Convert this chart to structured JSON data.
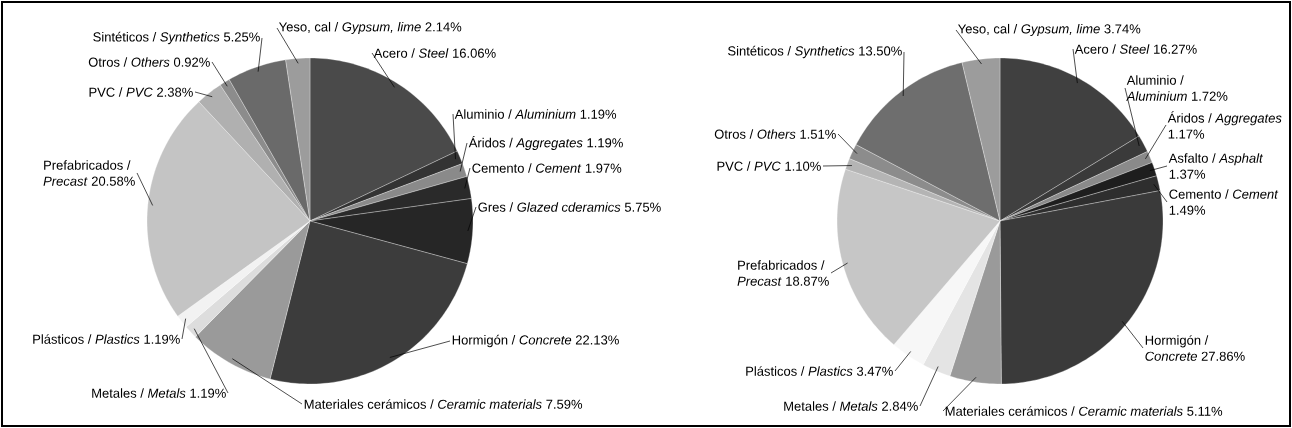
{
  "chart_data": [
    {
      "type": "pie",
      "categories": [
        "Acero / *Steel*",
        "Aluminio / *Aluminium*",
        "Áridos / *Aggregates*",
        "Cemento / *Cement*",
        "Gres / *Glazed cderamics*",
        "Hormigón / *Concrete*",
        "Materiales cerámicos / *Ceramic materials*",
        "Metales / *Metals*",
        "Plásticos / *Plastics*",
        "Prefabricados / *Precast*",
        "PVC / *PVC*",
        "Otros / *Others*",
        "Sintéticos / *Synthetics*",
        "Yeso, cal / *Gypsum, lime*"
      ],
      "values": [
        16.06,
        1.19,
        1.19,
        1.97,
        5.75,
        22.13,
        7.59,
        1.19,
        1.19,
        20.58,
        2.38,
        0.92,
        5.25,
        2.14
      ],
      "value_labels": [
        "16.06%",
        "1.19%",
        "1.19%",
        "1.97%",
        "5.75%",
        "22.13%",
        "7.59%",
        "1.19%",
        "1.19%",
        "20.58%",
        "2.38%",
        "0.92%",
        "5.25%",
        "2.14%"
      ],
      "colors": [
        "#4a4a4a",
        "#333333",
        "#8a8a8a",
        "#2a2a2a",
        "#262626",
        "#3c3c3c",
        "#9a9a9a",
        "#dddddd",
        "#f2f2f2",
        "#c4c4c4",
        "#b0b0b0",
        "#8c8c8c",
        "#6a6a6a",
        "#9c9c9c"
      ]
    },
    {
      "type": "pie",
      "categories": [
        "Acero / *Steel*",
        "Aluminio / *Aluminium*",
        "Áridos / *Aggregates*",
        "Asfalto / *Asphalt*",
        "Cemento / *Cement*",
        "Hormigón / *Concrete*",
        "Materiales cerámicos / *Ceramic materials*",
        "Metales / *Metals*",
        "Plásticos / *Plastics*",
        "Prefabricados / *Precast*",
        "PVC / *PVC*",
        "Otros / *Others*",
        "Sintéticos / *Synthetics*",
        "Yeso, cal / *Gypsum, lime*"
      ],
      "values": [
        16.27,
        1.72,
        1.17,
        1.37,
        1.49,
        27.86,
        5.11,
        2.84,
        3.47,
        18.87,
        1.1,
        1.51,
        13.5,
        3.74
      ],
      "value_labels": [
        "16.27%",
        "1.72%",
        "1.17%",
        "1.37%",
        "1.49%",
        "27.86%",
        "5.11%",
        "2.84%",
        "3.47%",
        "18.87%",
        "1.10%",
        "1.51%",
        "13.50%",
        "3.74%"
      ],
      "colors": [
        "#404040",
        "#3a3a3a",
        "#8a8a8a",
        "#1e1e1e",
        "#2e2e2e",
        "#3a3a3a",
        "#9a9a9a",
        "#e4e4e4",
        "#f7f7f7",
        "#c6c6c6",
        "#b4b4b4",
        "#8c8c8c",
        "#6e6e6e",
        "#9c9c9c"
      ]
    }
  ]
}
